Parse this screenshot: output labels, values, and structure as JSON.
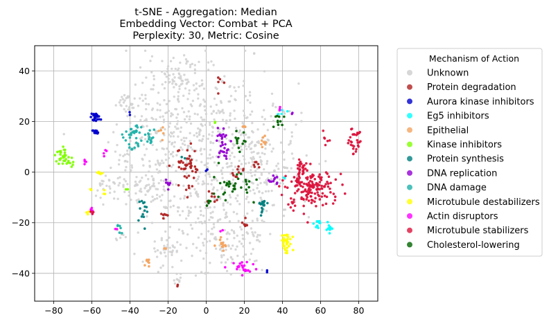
{
  "chart_data": {
    "type": "scatter",
    "title": [
      "t-SNE - Aggregation: Median",
      "Embedding Vector: Combat + PCA",
      "Perplexity: 30, Metric: Cosine"
    ],
    "xlabel": "",
    "ylabel": "",
    "xlim": [
      -90,
      90
    ],
    "ylim": [
      -51,
      50
    ],
    "xticks": [
      -80,
      -60,
      -40,
      -20,
      0,
      20,
      40,
      60,
      80
    ],
    "yticks": [
      -40,
      -20,
      0,
      20,
      40
    ],
    "grid": true,
    "legend": {
      "title": "Mechanism of Action",
      "placement": "outside right"
    },
    "series": [
      {
        "name": "Unknown",
        "color": "#d3d3d3",
        "clusters": [
          {
            "cx": -10,
            "cy": 20,
            "rx": 30,
            "ry": 22,
            "n": 230
          },
          {
            "cx": 10,
            "cy": 10,
            "rx": 32,
            "ry": 28,
            "n": 260
          },
          {
            "cx": -15,
            "cy": 38,
            "rx": 10,
            "ry": 7,
            "n": 50
          },
          {
            "cx": 0,
            "cy": -15,
            "rx": 28,
            "ry": 16,
            "n": 150
          },
          {
            "cx": -40,
            "cy": 28,
            "rx": 8,
            "ry": 5,
            "n": 30
          },
          {
            "cx": -30,
            "cy": -5,
            "rx": 12,
            "ry": 8,
            "n": 50
          },
          {
            "cx": -20,
            "cy": -30,
            "rx": 12,
            "ry": 6,
            "n": 40
          },
          {
            "cx": 30,
            "cy": 0,
            "rx": 18,
            "ry": 22,
            "n": 120
          },
          {
            "cx": -52,
            "cy": -5,
            "rx": 5,
            "ry": 5,
            "n": 25
          },
          {
            "cx": -40,
            "cy": 2,
            "rx": 8,
            "ry": 12,
            "n": 45
          },
          {
            "cx": 15,
            "cy": -30,
            "rx": 14,
            "ry": 10,
            "n": 60
          },
          {
            "cx": -15,
            "cy": -42,
            "rx": 2,
            "ry": 3,
            "n": 10
          },
          {
            "cx": -45,
            "cy": -25,
            "rx": 3,
            "ry": 3,
            "n": 8
          },
          {
            "cx": -1,
            "cy": -40,
            "rx": 2,
            "ry": 1,
            "n": 5
          }
        ]
      },
      {
        "name": "Protein degradation",
        "color": "#b22222",
        "clusters": [
          {
            "cx": -10,
            "cy": 2,
            "rx": 6,
            "ry": 9,
            "n": 45
          },
          {
            "cx": 3,
            "cy": -10,
            "rx": 2,
            "ry": 3,
            "n": 8
          },
          {
            "cx": 17,
            "cy": 0,
            "rx": 3,
            "ry": 3,
            "n": 10
          },
          {
            "cx": 20,
            "cy": -20,
            "rx": 2,
            "ry": 2,
            "n": 6
          },
          {
            "cx": 7,
            "cy": 35,
            "rx": 2,
            "ry": 3,
            "n": 5
          },
          {
            "cx": -22,
            "cy": -17,
            "rx": 2,
            "ry": 3,
            "n": 6
          },
          {
            "cx": -15,
            "cy": -45,
            "rx": 1,
            "ry": 1,
            "n": 2
          },
          {
            "cx": 27,
            "cy": 3,
            "rx": 2,
            "ry": 2,
            "n": 6
          }
        ]
      },
      {
        "name": "Aurora kinase inhibitors",
        "color": "#0000cd",
        "clusters": [
          {
            "cx": -58,
            "cy": 22,
            "rx": 2.5,
            "ry": 1.5,
            "n": 25
          },
          {
            "cx": -58,
            "cy": 16,
            "rx": 2,
            "ry": 1.2,
            "n": 12
          },
          {
            "cx": -40,
            "cy": 23,
            "rx": 1,
            "ry": 1,
            "n": 2
          },
          {
            "cx": 0,
            "cy": 1,
            "rx": 1,
            "ry": 1,
            "n": 2
          },
          {
            "cx": 32,
            "cy": -40,
            "rx": 1,
            "ry": 1,
            "n": 2
          }
        ]
      },
      {
        "name": "Eg5 inhibitors",
        "color": "#00ffff",
        "clusters": [
          {
            "cx": 59,
            "cy": -20,
            "rx": 2,
            "ry": 2,
            "n": 12
          },
          {
            "cx": 65,
            "cy": -22,
            "rx": 2,
            "ry": 2,
            "n": 14
          },
          {
            "cx": 40,
            "cy": 24,
            "rx": 2,
            "ry": 2,
            "n": 4
          },
          {
            "cx": 41,
            "cy": -3,
            "rx": 1,
            "ry": 1,
            "n": 2
          }
        ]
      },
      {
        "name": "Epithelial",
        "color": "#f4a460",
        "clusters": [
          {
            "cx": 9,
            "cy": -29,
            "rx": 3,
            "ry": 2,
            "n": 15
          },
          {
            "cx": -31,
            "cy": -35,
            "rx": 2,
            "ry": 2,
            "n": 8
          },
          {
            "cx": -24,
            "cy": 16,
            "rx": 2,
            "ry": 2,
            "n": 6
          },
          {
            "cx": 30,
            "cy": 13,
            "rx": 2,
            "ry": 4,
            "n": 8
          },
          {
            "cx": 20,
            "cy": 18,
            "rx": 1,
            "ry": 1,
            "n": 3
          },
          {
            "cx": -22,
            "cy": -30,
            "rx": 1,
            "ry": 1,
            "n": 2
          }
        ]
      },
      {
        "name": "Kinase inhibitors",
        "color": "#7fff00",
        "clusters": [
          {
            "cx": -76,
            "cy": 6,
            "rx": 3,
            "ry": 3,
            "n": 25
          },
          {
            "cx": -72,
            "cy": 4,
            "rx": 2,
            "ry": 2,
            "n": 10
          },
          {
            "cx": -42,
            "cy": -7,
            "rx": 1,
            "ry": 1,
            "n": 2
          },
          {
            "cx": 5,
            "cy": 20,
            "rx": 1,
            "ry": 1,
            "n": 2
          }
        ]
      },
      {
        "name": "Protein synthesis",
        "color": "#008080",
        "clusters": [
          {
            "cx": 29,
            "cy": -13,
            "rx": 3,
            "ry": 3,
            "n": 20
          },
          {
            "cx": -32,
            "cy": -13,
            "rx": 2,
            "ry": 2,
            "n": 8
          },
          {
            "cx": -34,
            "cy": -18,
            "rx": 2,
            "ry": 3,
            "n": 6
          },
          {
            "cx": -12,
            "cy": 6,
            "rx": 1,
            "ry": 1,
            "n": 2
          }
        ]
      },
      {
        "name": "DNA replication",
        "color": "#9400d3",
        "clusters": [
          {
            "cx": 9,
            "cy": 14,
            "rx": 3,
            "ry": 3,
            "n": 18
          },
          {
            "cx": 9,
            "cy": 8,
            "rx": 3,
            "ry": 2,
            "n": 14
          },
          {
            "cx": -20,
            "cy": -5,
            "rx": 2,
            "ry": 2,
            "n": 8
          },
          {
            "cx": 35,
            "cy": -3,
            "rx": 3,
            "ry": 2,
            "n": 10
          },
          {
            "cx": 45,
            "cy": 24,
            "rx": 1,
            "ry": 1,
            "n": 2
          }
        ]
      },
      {
        "name": "DNA damage",
        "color": "#20b2aa",
        "clusters": [
          {
            "cx": -38,
            "cy": 15,
            "rx": 4,
            "ry": 5,
            "n": 35
          },
          {
            "cx": -30,
            "cy": 14,
            "rx": 3,
            "ry": 3,
            "n": 14
          },
          {
            "cx": -45,
            "cy": -23,
            "rx": 2,
            "ry": 2,
            "n": 6
          }
        ]
      },
      {
        "name": "Microtubule destabilizers",
        "color": "#ffff00",
        "clusters": [
          {
            "cx": 42,
            "cy": -28,
            "rx": 3,
            "ry": 4,
            "n": 35
          },
          {
            "cx": -56,
            "cy": 0,
            "rx": 2,
            "ry": 1,
            "n": 6
          },
          {
            "cx": -53,
            "cy": -8,
            "rx": 1,
            "ry": 1,
            "n": 3
          },
          {
            "cx": -60,
            "cy": -6,
            "rx": 1,
            "ry": 1,
            "n": 2
          },
          {
            "cx": -62,
            "cy": -16,
            "rx": 1,
            "ry": 2,
            "n": 3
          }
        ]
      },
      {
        "name": "Actin disruptors",
        "color": "#ff00ff",
        "clusters": [
          {
            "cx": 20,
            "cy": -38,
            "rx": 8,
            "ry": 3,
            "n": 22
          },
          {
            "cx": -64,
            "cy": 4,
            "rx": 1,
            "ry": 1,
            "n": 4
          },
          {
            "cx": -60,
            "cy": -15,
            "rx": 1,
            "ry": 2,
            "n": 6
          },
          {
            "cx": -53,
            "cy": 7,
            "rx": 1,
            "ry": 2,
            "n": 4
          },
          {
            "cx": -47,
            "cy": -23,
            "rx": 1,
            "ry": 1,
            "n": 2
          },
          {
            "cx": 8,
            "cy": -23,
            "rx": 1,
            "ry": 1,
            "n": 2
          },
          {
            "cx": 39,
            "cy": 25,
            "rx": 1,
            "ry": 1,
            "n": 3
          }
        ]
      },
      {
        "name": "Microtubule stabilizers",
        "color": "#dc143c",
        "clusters": [
          {
            "cx": 55,
            "cy": -6,
            "rx": 12,
            "ry": 7,
            "n": 140
          },
          {
            "cx": 50,
            "cy": 0,
            "rx": 4,
            "ry": 5,
            "n": 30
          },
          {
            "cx": 78,
            "cy": 13,
            "rx": 3,
            "ry": 4,
            "n": 30
          },
          {
            "cx": 63,
            "cy": 12,
            "rx": 2,
            "ry": 3,
            "n": 6
          },
          {
            "cx": 45,
            "cy": -13,
            "rx": 2,
            "ry": 3,
            "n": 8
          },
          {
            "cx": -60,
            "cy": -16,
            "rx": 1,
            "ry": 1,
            "n": 3
          }
        ]
      },
      {
        "name": "Cholesterol-lowering",
        "color": "#006400",
        "clusters": [
          {
            "cx": 13,
            "cy": -5,
            "rx": 10,
            "ry": 5,
            "n": 35
          },
          {
            "cx": 18,
            "cy": 13,
            "rx": 4,
            "ry": 6,
            "n": 12
          },
          {
            "cx": 38,
            "cy": 20,
            "rx": 3,
            "ry": 4,
            "n": 10
          },
          {
            "cx": 2,
            "cy": -11,
            "rx": 2,
            "ry": 2,
            "n": 5
          }
        ]
      }
    ]
  }
}
